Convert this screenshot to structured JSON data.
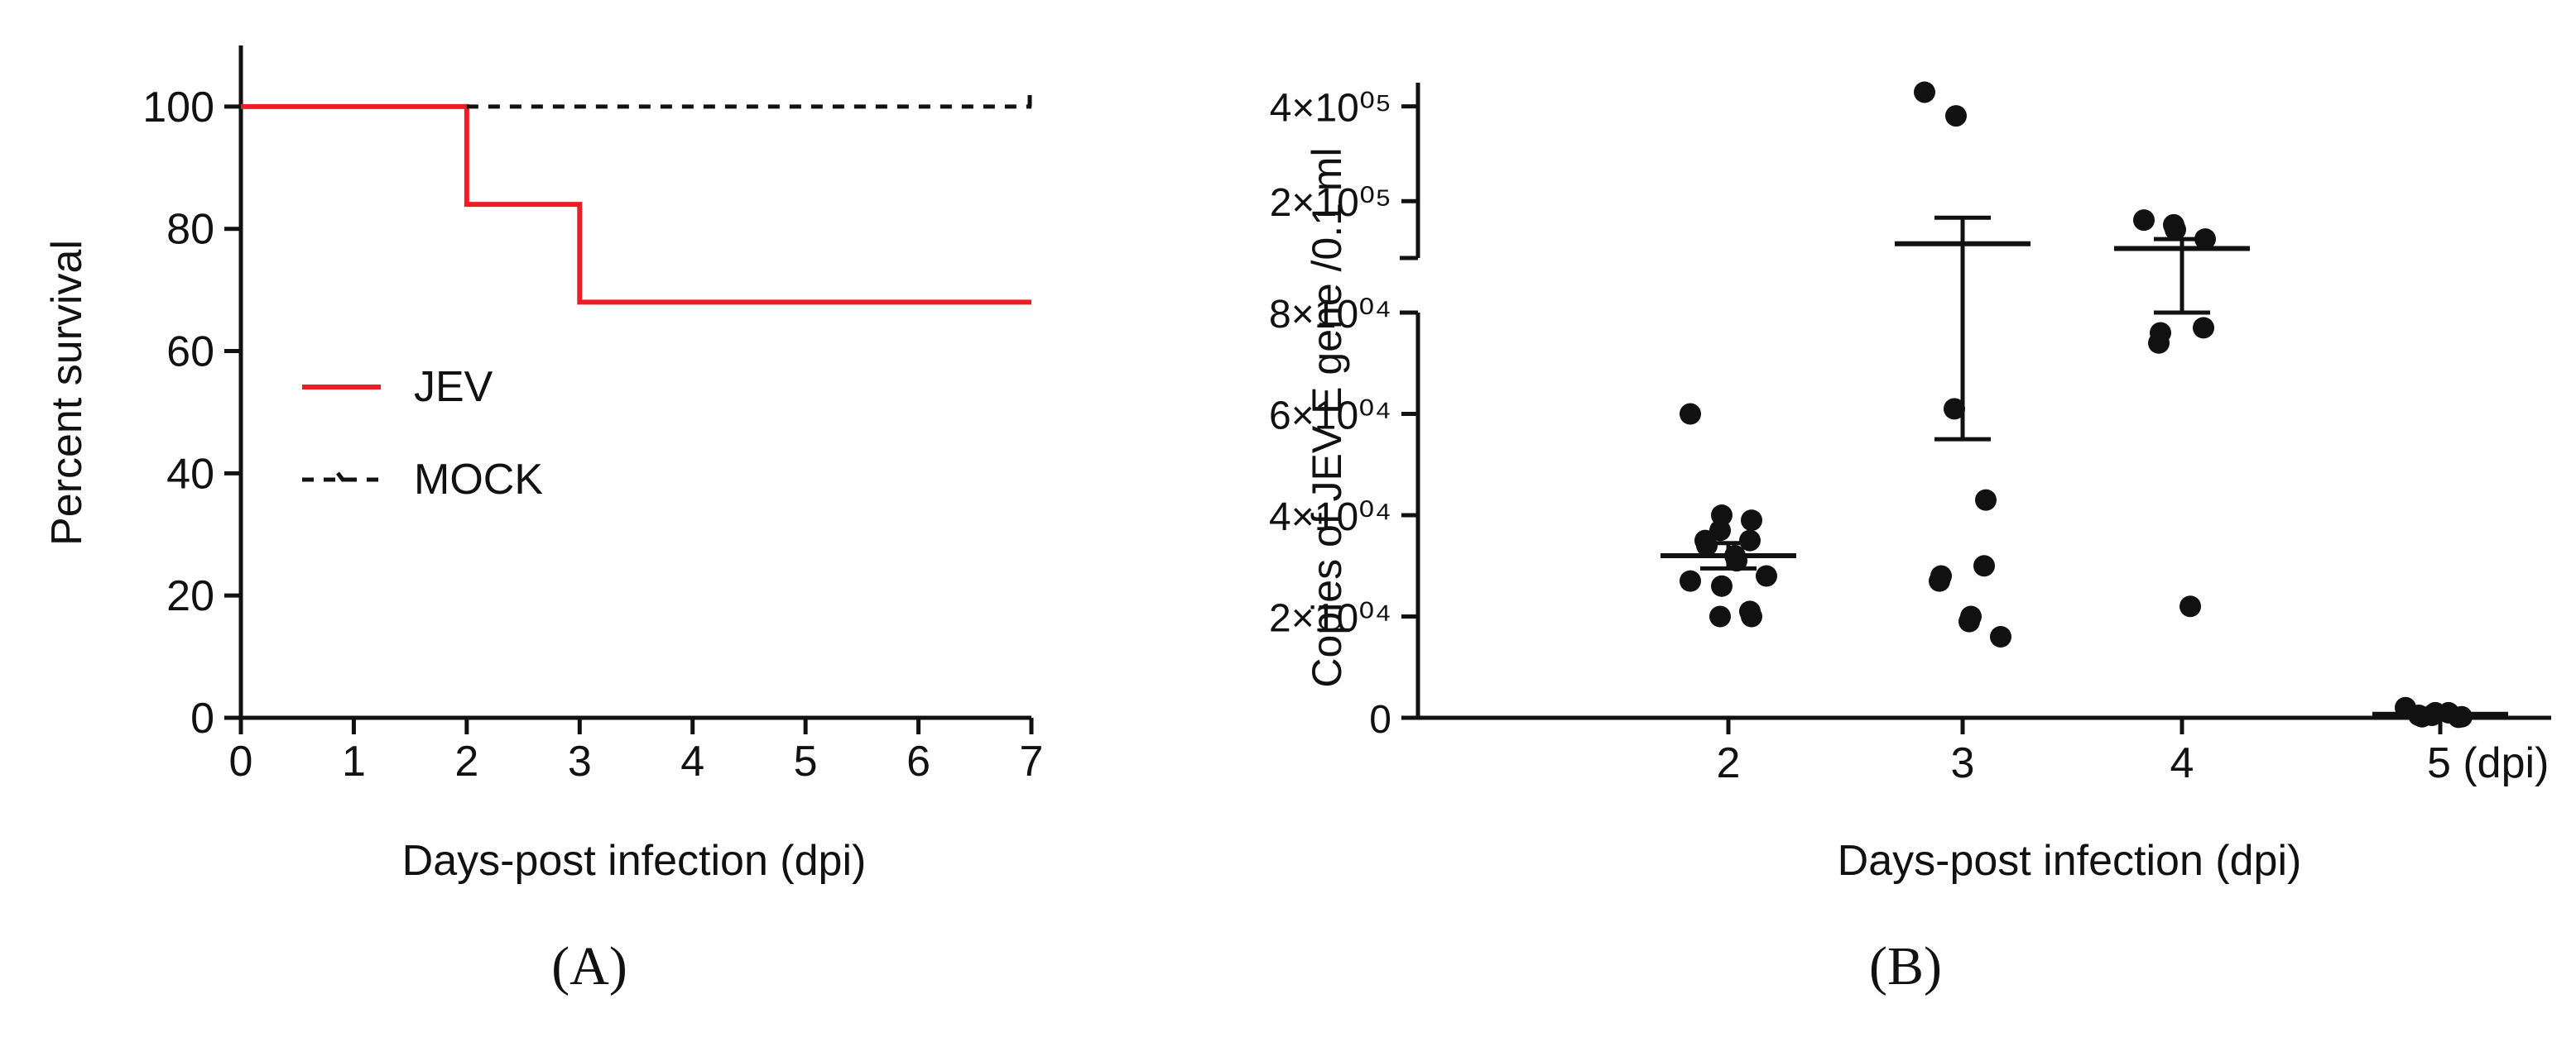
{
  "panels": {
    "a_label": "(A)",
    "b_label": "(B)"
  },
  "chart_data": [
    {
      "type": "line",
      "step": true,
      "xlabel": "Days-post infection (dpi)",
      "ylabel": "Percent survival",
      "xlim": [
        0,
        7
      ],
      "ylim": [
        0,
        110
      ],
      "x_ticks": [
        "0",
        "1",
        "2",
        "3",
        "4",
        "5",
        "6",
        "7"
      ],
      "y_ticks": [
        "0",
        "20",
        "40",
        "60",
        "80",
        "100"
      ],
      "legend": {
        "position": "center-left",
        "entries": [
          "JEV",
          "MOCK"
        ]
      },
      "series": [
        {
          "name": "JEV",
          "color": "#ee1c25",
          "style": "solid",
          "x": [
            0,
            2,
            2,
            3,
            3,
            7
          ],
          "y": [
            100,
            100,
            84,
            84,
            68,
            68
          ]
        },
        {
          "name": "MOCK",
          "color": "#111111",
          "style": "dashed",
          "x": [
            2,
            7
          ],
          "y": [
            100,
            100
          ]
        }
      ]
    },
    {
      "type": "scatter",
      "xlabel": "Days-post infection (dpi)",
      "ylabel": "Copies of JEV E gene /0.1 ml",
      "categories": [
        "2",
        "3",
        "4",
        "5 (dpi)"
      ],
      "y_axis_break": true,
      "y_ticks_lower": [
        "0",
        "2×10⁰⁴",
        "4×10⁰⁴",
        "6×10⁰⁴",
        "8×10⁰⁴"
      ],
      "y_ticks_upper": [
        "2×10⁰⁵",
        "4×10⁰⁵"
      ],
      "ylim_lower": [
        0,
        80000
      ],
      "ylim_upper": [
        80000,
        450000
      ],
      "groups": [
        {
          "category": "2",
          "values": [
            60000,
            40000,
            37000,
            39000,
            35000,
            34000,
            35000,
            31000,
            32000,
            28000,
            27000,
            26000,
            20000,
            20000,
            21000
          ],
          "mean": 32000,
          "sem": 2500
        },
        {
          "category": "3",
          "values": [
            430000,
            380000,
            61000,
            43000,
            30000,
            28000,
            27000,
            20000,
            19000,
            16000
          ],
          "mean": 110000,
          "sem": 55000
        },
        {
          "category": "4",
          "values": [
            160000,
            140000,
            150000,
            120000,
            77000,
            76000,
            74000,
            22000
          ],
          "mean": 100000,
          "sem": 20000
        },
        {
          "category": "5 (dpi)",
          "values": [
            2000,
            1000,
            500,
            200,
            100,
            200,
            500,
            1000
          ],
          "mean": 700,
          "sem": 300
        }
      ]
    }
  ]
}
